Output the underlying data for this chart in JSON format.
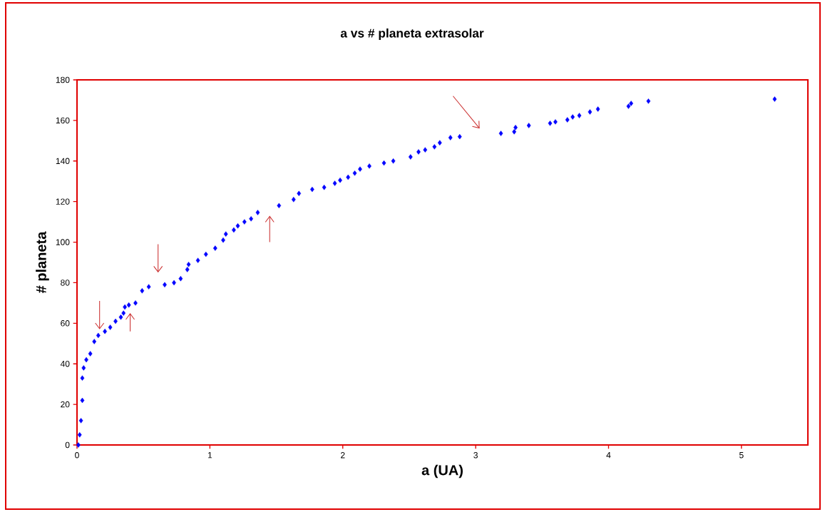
{
  "chart_data": {
    "type": "scatter",
    "title": "a vs # planeta extrasolar",
    "xlabel": "a (UA)",
    "ylabel": "# planeta",
    "x": [
      0.01,
      0.02,
      0.03,
      0.04,
      0.04,
      0.05,
      0.07,
      0.1,
      0.13,
      0.16,
      0.21,
      0.25,
      0.29,
      0.33,
      0.35,
      0.36,
      0.39,
      0.44,
      0.49,
      0.54,
      0.66,
      0.73,
      0.78,
      0.83,
      0.84,
      0.91,
      0.97,
      1.04,
      1.1,
      1.12,
      1.18,
      1.21,
      1.26,
      1.31,
      1.36,
      1.52,
      1.63,
      1.67,
      1.77,
      1.86,
      1.94,
      1.98,
      2.04,
      2.09,
      2.13,
      2.2,
      2.31,
      2.38,
      2.51,
      2.57,
      2.62,
      2.69,
      2.73,
      2.81,
      2.88,
      3.19,
      3.29,
      3.3,
      3.4,
      3.56,
      3.6,
      3.69,
      3.73,
      3.78,
      3.86,
      3.92,
      4.15,
      4.17,
      4.3,
      5.25
    ],
    "values": [
      0,
      5,
      12,
      22,
      33,
      38,
      42,
      45,
      51,
      54,
      56,
      58,
      61,
      63,
      65,
      68,
      69,
      70,
      76,
      78,
      79,
      80,
      82,
      86.5,
      89,
      91,
      94,
      97,
      101,
      104,
      106,
      108,
      110,
      111.5,
      114.6,
      118,
      121,
      124,
      126,
      127,
      129,
      130.5,
      132,
      134,
      136,
      137.5,
      139,
      140,
      142,
      144.5,
      145.5,
      147,
      149,
      151.5,
      152,
      153.6,
      154.4,
      156.5,
      157.5,
      158.6,
      159.3,
      160.3,
      161.7,
      162.4,
      164.2,
      165.6,
      167,
      168.4,
      169.5,
      170.5
    ],
    "color": "#0000ff",
    "marker": "diamond",
    "xlim": [
      0,
      5.5
    ],
    "ylim": [
      0,
      180
    ],
    "xticks": [
      0,
      1,
      2,
      3,
      4,
      5
    ],
    "yticks": [
      0,
      20,
      40,
      60,
      80,
      100,
      120,
      140,
      160,
      180
    ],
    "grid": false
  }
}
